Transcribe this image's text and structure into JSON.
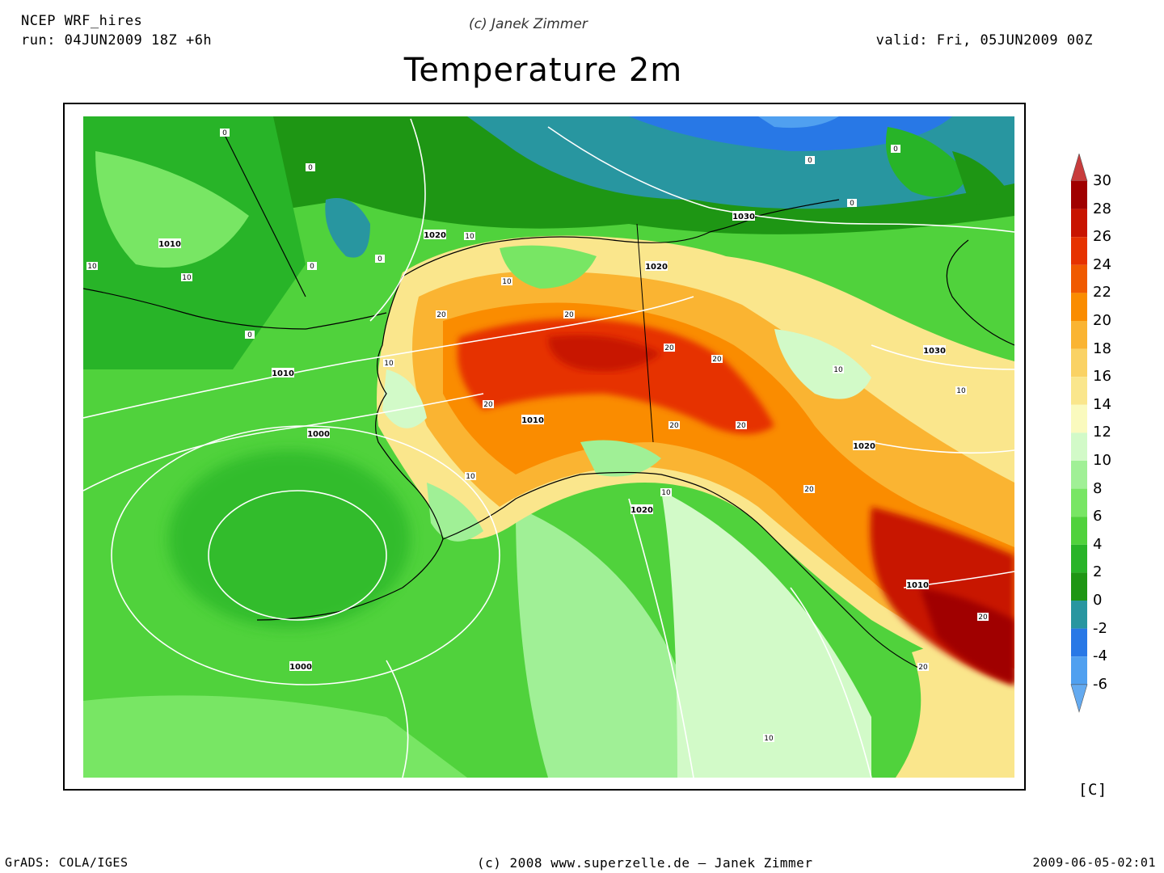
{
  "header": {
    "model": "NCEP WRF_hires",
    "run": "run: 04JUN2009 18Z +6h",
    "credit": "(c) Janek Zimmer",
    "valid": "valid: Fri, 05JUN2009 00Z",
    "title": "Temperature 2m"
  },
  "footer": {
    "left": "GrADS: COLA/IGES",
    "center": "(c) 2008 www.superzelle.de – Janek Zimmer",
    "right": "2009-06-05-02:01"
  },
  "legend": {
    "unit": "[C]",
    "labels": [
      "30",
      "28",
      "26",
      "24",
      "22",
      "20",
      "18",
      "16",
      "14",
      "12",
      "10",
      "8",
      "6",
      "4",
      "2",
      "0",
      "-2",
      "-4",
      "-6"
    ],
    "colors": {
      "28": "#a00000",
      "26": "#c81400",
      "24": "#e63200",
      "22": "#f05a00",
      "20": "#fa8c00",
      "18": "#fab432",
      "16": "#fad264",
      "14": "#fae68c",
      "12": "#fafabe",
      "10": "#d2fac8",
      "8": "#a0f096",
      "6": "#78e664",
      "4": "#50d23c",
      "2": "#28b428",
      "0": "#1e9614",
      "-2": "#2896a0",
      "-4": "#2878e6",
      "-6": "#50a0f0"
    },
    "top_arrow_color": "#c83c3c",
    "bottom_arrow_color": "#64aaf0"
  },
  "contours": {
    "isobars": [
      "1030",
      "1030",
      "1020",
      "1020",
      "1020",
      "1020",
      "1010",
      "1010",
      "1010",
      "1010",
      "1000",
      "1000"
    ],
    "isotherms": [
      "0",
      "0",
      "0",
      "0",
      "0",
      "0",
      "0",
      "0",
      "10",
      "10",
      "10",
      "10",
      "10",
      "10",
      "10",
      "10",
      "10",
      "10",
      "20",
      "20",
      "20",
      "20",
      "20",
      "20",
      "20",
      "20",
      "20",
      "20"
    ]
  }
}
